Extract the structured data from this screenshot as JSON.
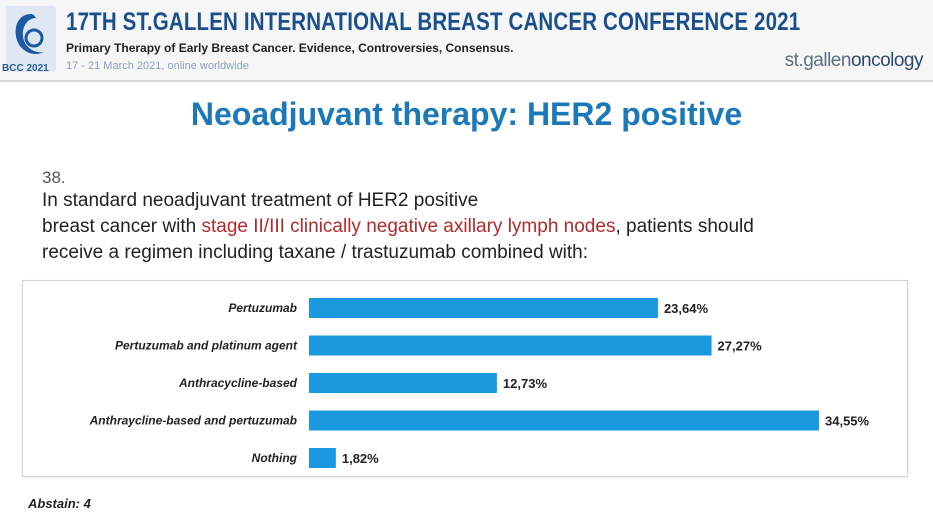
{
  "header": {
    "conference_title": "17TH ST.GALLEN INTERNATIONAL BREAST CANCER CONFERENCE 2021",
    "subtitle": "Primary Therapy of Early Breast Cancer. Evidence, Controversies, Consensus.",
    "dates": "17 - 21 March 2021, online worldwide",
    "logo_label": "BCC 2021",
    "brand_part1": "st.gallen",
    "brand_part2": "oncology"
  },
  "slide": {
    "title": "Neoadjuvant therapy: HER2 positive",
    "question_number": "38.",
    "question_line1": "In standard neoadjuvant treatment of HER2 positive",
    "question_line2_pre": "breast cancer with ",
    "question_line2_highlight": "stage II/III clinically negative axillary lymph nodes",
    "question_line2_post": ", patients should",
    "question_line3": "receive a regimen including taxane / trastuzumab combined with:",
    "abstain": "Abstain: 4"
  },
  "colors": {
    "bar": "#1a98e0",
    "title": "#1b78b9",
    "highlight": "#b22a2a",
    "header_text": "#1b4f8c"
  },
  "chart_data": {
    "type": "bar",
    "orientation": "horizontal",
    "categories": [
      "Pertuzumab",
      "Pertuzumab and platinum agent",
      "Anthracycline-based",
      "Anthraycline-based and pertuzumab",
      "Nothing"
    ],
    "values": [
      23.64,
      27.27,
      12.73,
      34.55,
      1.82
    ],
    "value_labels": [
      "23,64%",
      "27,27%",
      "12,73%",
      "34,55%",
      "1,82%"
    ],
    "xlim": [
      0,
      34.55
    ],
    "grid": false,
    "legend": "none"
  }
}
